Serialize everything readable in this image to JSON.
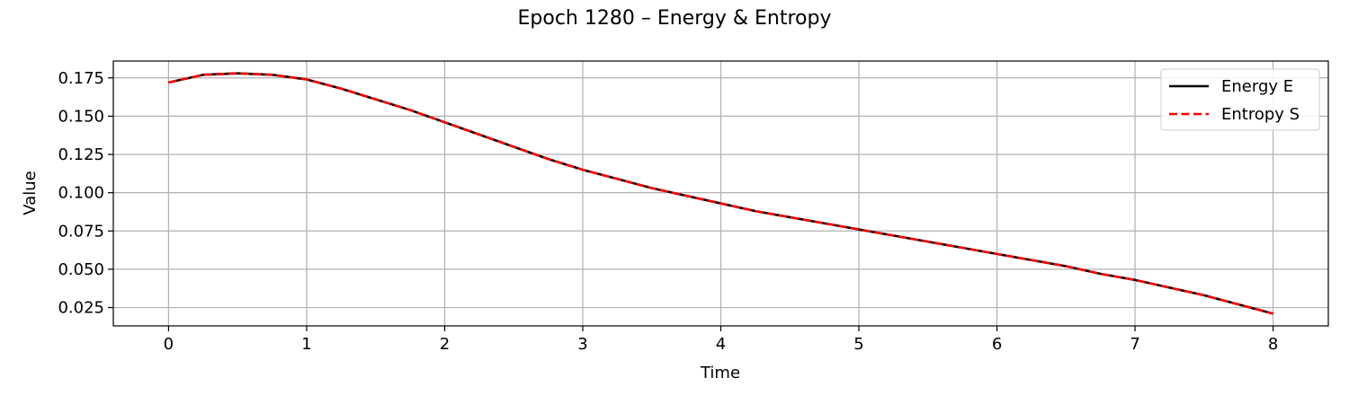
{
  "chart_data": {
    "type": "line",
    "title": "Epoch 1280 – Energy & Entropy",
    "xlabel": "Time",
    "ylabel": "Value",
    "xlim": [
      -0.4,
      8.4
    ],
    "ylim": [
      0.013,
      0.186
    ],
    "xticks": [
      0,
      1,
      2,
      3,
      4,
      5,
      6,
      7,
      8
    ],
    "xtick_labels": [
      "0",
      "1",
      "2",
      "3",
      "4",
      "5",
      "6",
      "7",
      "8"
    ],
    "yticks": [
      0.025,
      0.05,
      0.075,
      0.1,
      0.125,
      0.15,
      0.175
    ],
    "ytick_labels": [
      "0.025",
      "0.050",
      "0.075",
      "0.100",
      "0.125",
      "0.150",
      "0.175"
    ],
    "grid": true,
    "legend_position": "top-right",
    "x": [
      0,
      0.25,
      0.5,
      0.75,
      1,
      1.25,
      1.5,
      1.75,
      2,
      2.25,
      2.5,
      2.75,
      3,
      3.25,
      3.5,
      3.75,
      4,
      4.25,
      4.5,
      4.75,
      5,
      5.25,
      5.5,
      5.75,
      6,
      6.25,
      6.5,
      6.75,
      7,
      7.25,
      7.5,
      7.75,
      8
    ],
    "series": [
      {
        "name": "Energy E",
        "color": "#000000",
        "style": "solid",
        "values": [
          0.172,
          0.177,
          0.178,
          0.177,
          0.174,
          0.168,
          0.161,
          0.154,
          0.146,
          0.138,
          0.13,
          0.122,
          0.115,
          0.109,
          0.103,
          0.098,
          0.093,
          0.088,
          0.084,
          0.08,
          0.076,
          0.072,
          0.068,
          0.064,
          0.06,
          0.056,
          0.052,
          0.047,
          0.043,
          0.038,
          0.033,
          0.027,
          0.021
        ]
      },
      {
        "name": "Entropy S",
        "color": "#ff0000",
        "style": "dashed",
        "values": [
          0.172,
          0.177,
          0.178,
          0.177,
          0.174,
          0.168,
          0.161,
          0.154,
          0.146,
          0.138,
          0.13,
          0.122,
          0.115,
          0.109,
          0.103,
          0.098,
          0.093,
          0.088,
          0.084,
          0.08,
          0.076,
          0.072,
          0.068,
          0.064,
          0.06,
          0.056,
          0.052,
          0.047,
          0.043,
          0.038,
          0.033,
          0.027,
          0.021
        ]
      }
    ]
  }
}
